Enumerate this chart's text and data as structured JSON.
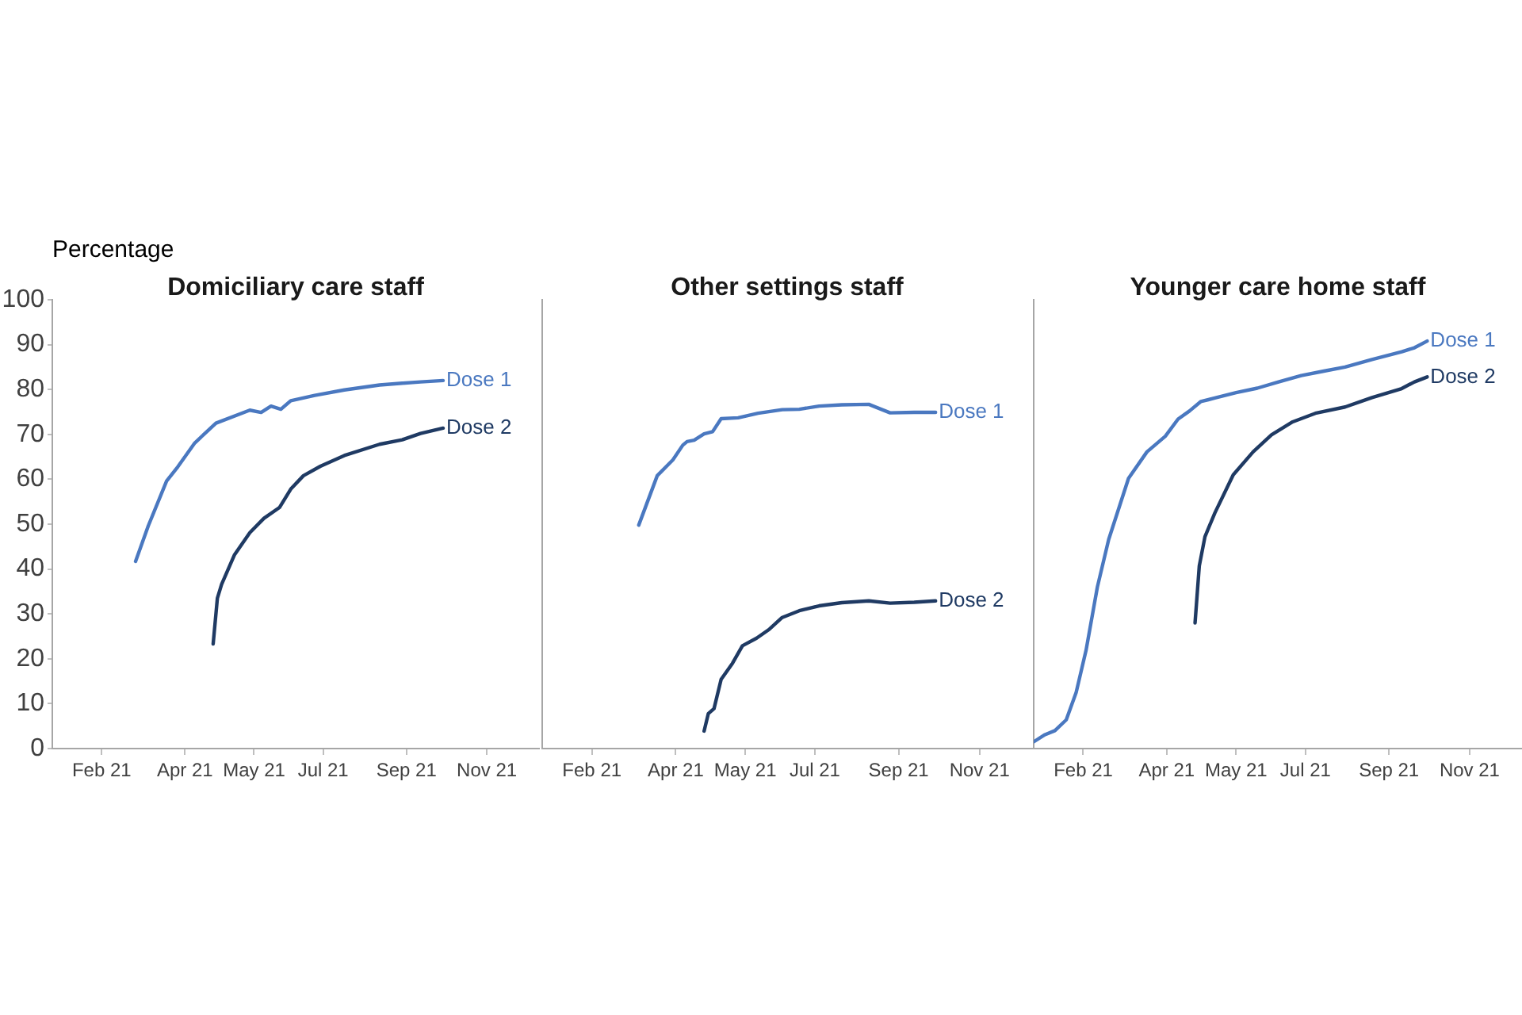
{
  "chart_data": [
    {
      "type": "line",
      "title": "Domiciliary care staff",
      "ylabel": "Percentage",
      "xlim": [
        "2020-12-28",
        "2021-12-08"
      ],
      "xticks": [
        {
          "value": "2021-02-01",
          "label": "Feb 21"
        },
        {
          "value": "2021-04-01",
          "label": "Apr 21"
        },
        {
          "value": "2021-05-20",
          "label": "May 21"
        },
        {
          "value": "2021-07-08",
          "label": "Jul 21"
        },
        {
          "value": "2021-09-05",
          "label": "Sep 21"
        },
        {
          "value": "2021-11-01",
          "label": "Nov 21"
        }
      ],
      "ylim": [
        0,
        100
      ],
      "yticks": [
        0,
        10,
        20,
        30,
        40,
        50,
        60,
        70,
        80,
        90,
        100
      ],
      "grid": false,
      "legend": false,
      "marker": "none",
      "line_style": "solid",
      "series": [
        {
          "name": "Dose 1",
          "color": "#4a78c0",
          "x": [
            "2021-02-25",
            "2021-03-06",
            "2021-03-19",
            "2021-03-27",
            "2021-04-08",
            "2021-04-23",
            "2021-05-17",
            "2021-05-25",
            "2021-06-01",
            "2021-06-08",
            "2021-06-15",
            "2021-07-02",
            "2021-07-23",
            "2021-08-17",
            "2021-09-02",
            "2021-09-15",
            "2021-10-01"
          ],
          "values": [
            41.7,
            49.6,
            59.6,
            62.8,
            68.1,
            72.5,
            75.4,
            74.9,
            76.3,
            75.6,
            77.5,
            78.7,
            79.9,
            81.0,
            81.4,
            81.7,
            82.0
          ]
        },
        {
          "name": "Dose 2",
          "color": "#1f3a63",
          "x": [
            "2021-04-21",
            "2021-04-24",
            "2021-04-27",
            "2021-05-06",
            "2021-05-17",
            "2021-05-27",
            "2021-06-07",
            "2021-06-15",
            "2021-06-24",
            "2021-07-06",
            "2021-07-23",
            "2021-08-17",
            "2021-09-02",
            "2021-09-15",
            "2021-10-01"
          ],
          "values": [
            23.3,
            33.5,
            36.6,
            43.1,
            48.1,
            51.3,
            53.7,
            57.8,
            60.8,
            62.9,
            65.3,
            67.8,
            68.8,
            70.2,
            71.4
          ]
        }
      ]
    },
    {
      "type": "line",
      "title": "Other settings staff",
      "xlim": [
        "2020-12-28",
        "2021-12-08"
      ],
      "xticks": [
        {
          "value": "2021-02-01",
          "label": "Feb 21"
        },
        {
          "value": "2021-04-01",
          "label": "Apr 21"
        },
        {
          "value": "2021-05-20",
          "label": "May 21"
        },
        {
          "value": "2021-07-08",
          "label": "Jul 21"
        },
        {
          "value": "2021-09-05",
          "label": "Sep 21"
        },
        {
          "value": "2021-11-01",
          "label": "Nov 21"
        }
      ],
      "ylim": [
        0,
        100
      ],
      "tick_labels": "x",
      "grid": false,
      "legend": false,
      "marker": "none",
      "line_style": "solid",
      "series": [
        {
          "name": "Dose 1",
          "color": "#4a78c0",
          "x": [
            "2021-03-06",
            "2021-03-19",
            "2021-03-30",
            "2021-04-06",
            "2021-04-09",
            "2021-04-14",
            "2021-04-21",
            "2021-04-27",
            "2021-05-03",
            "2021-05-15",
            "2021-05-29",
            "2021-06-15",
            "2021-06-27",
            "2021-07-11",
            "2021-07-27",
            "2021-08-15",
            "2021-08-30",
            "2021-09-16",
            "2021-10-01"
          ],
          "values": [
            49.8,
            60.8,
            64.3,
            67.6,
            68.4,
            68.7,
            70.1,
            70.6,
            73.5,
            73.7,
            74.7,
            75.5,
            75.6,
            76.3,
            76.6,
            76.7,
            74.8,
            74.9,
            74.9
          ]
        },
        {
          "name": "Dose 2",
          "color": "#1f3a63",
          "x": [
            "2021-04-21",
            "2021-04-24",
            "2021-04-28",
            "2021-05-03",
            "2021-05-11",
            "2021-05-18",
            "2021-05-28",
            "2021-06-06",
            "2021-06-15",
            "2021-06-27",
            "2021-07-11",
            "2021-07-27",
            "2021-08-15",
            "2021-08-30",
            "2021-09-16",
            "2021-10-01"
          ],
          "values": [
            3.9,
            7.8,
            8.9,
            15.4,
            19.0,
            22.9,
            24.6,
            26.6,
            29.2,
            30.7,
            31.8,
            32.5,
            32.9,
            32.4,
            32.6,
            32.9
          ]
        }
      ]
    },
    {
      "type": "line",
      "title": "Younger care home staff",
      "xlim": [
        "2020-12-28",
        "2021-12-08"
      ],
      "xticks": [
        {
          "value": "2021-02-01",
          "label": "Feb 21"
        },
        {
          "value": "2021-04-01",
          "label": "Apr 21"
        },
        {
          "value": "2021-05-20",
          "label": "May 21"
        },
        {
          "value": "2021-07-08",
          "label": "Jul 21"
        },
        {
          "value": "2021-09-05",
          "label": "Sep 21"
        },
        {
          "value": "2021-11-01",
          "label": "Nov 21"
        }
      ],
      "ylim": [
        0,
        100
      ],
      "tick_labels": "x",
      "grid": false,
      "legend": false,
      "marker": "none",
      "line_style": "solid",
      "series": [
        {
          "name": "Dose 1",
          "color": "#4a78c0",
          "x": [
            "2020-12-28",
            "2021-01-05",
            "2021-01-12",
            "2021-01-20",
            "2021-01-27",
            "2021-02-03",
            "2021-02-11",
            "2021-02-19",
            "2021-03-05",
            "2021-03-18",
            "2021-03-31",
            "2021-04-09",
            "2021-04-17",
            "2021-04-25",
            "2021-05-05",
            "2021-05-20",
            "2021-06-04",
            "2021-06-19",
            "2021-07-05",
            "2021-07-21",
            "2021-08-05",
            "2021-08-24",
            "2021-09-14",
            "2021-09-23",
            "2021-10-02"
          ],
          "values": [
            1.5,
            3.1,
            4.0,
            6.4,
            12.5,
            21.9,
            36.0,
            46.6,
            60.2,
            66.1,
            69.6,
            73.4,
            75.2,
            77.3,
            78.1,
            79.3,
            80.3,
            81.7,
            83.1,
            84.1,
            85.0,
            86.7,
            88.4,
            89.3,
            90.8
          ]
        },
        {
          "name": "Dose 2",
          "color": "#1f3a63",
          "x": [
            "2021-04-21",
            "2021-04-24",
            "2021-04-28",
            "2021-05-05",
            "2021-05-18",
            "2021-06-01",
            "2021-06-14",
            "2021-06-29",
            "2021-07-15",
            "2021-08-05",
            "2021-08-24",
            "2021-09-14",
            "2021-09-23",
            "2021-10-02"
          ],
          "values": [
            28.0,
            40.7,
            47.2,
            52.5,
            61.0,
            66.1,
            69.9,
            72.8,
            74.7,
            76.1,
            78.2,
            80.2,
            81.7,
            82.8
          ]
        }
      ]
    }
  ]
}
